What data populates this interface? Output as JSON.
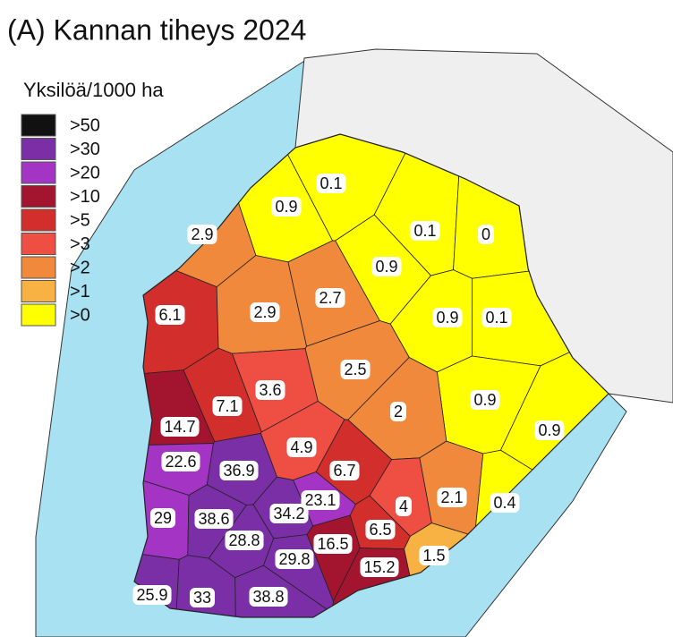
{
  "title": "(A) Kannan tiheys 2024",
  "legend": {
    "title": "Yksilöä/1000 ha",
    "items": [
      {
        "label": ">50",
        "color": "#111111"
      },
      {
        "label": ">30",
        "color": "#7a2fa6"
      },
      {
        "label": ">20",
        "color": "#a334c4"
      },
      {
        "label": ">10",
        "color": "#a3152e"
      },
      {
        "label": ">5",
        "color": "#d22e2c"
      },
      {
        "label": ">3",
        "color": "#ef4e43"
      },
      {
        "label": ">2",
        "color": "#f0893c"
      },
      {
        "label": ">1",
        "color": "#f8b244"
      },
      {
        "label": ">0",
        "color": "#ffff00"
      }
    ]
  },
  "regions": [
    {
      "value": 0.1
    },
    {
      "value": 0.9
    },
    {
      "value": 2.9
    },
    {
      "value": 0.1
    },
    {
      "value": 0
    },
    {
      "value": 0.9
    },
    {
      "value": 6.1
    },
    {
      "value": 2.9
    },
    {
      "value": 2.7
    },
    {
      "value": 0.9
    },
    {
      "value": 0.1
    },
    {
      "value": 2.5
    },
    {
      "value": 3.6
    },
    {
      "value": 7.1
    },
    {
      "value": 0.9
    },
    {
      "value": 2
    },
    {
      "value": 14.7
    },
    {
      "value": 0.9
    },
    {
      "value": 4.9
    },
    {
      "value": 22.6
    },
    {
      "value": 36.9
    },
    {
      "value": 6.7
    },
    {
      "value": 23.1
    },
    {
      "value": 2.1
    },
    {
      "value": 0.4
    },
    {
      "value": 4
    },
    {
      "value": 29
    },
    {
      "value": 38.6
    },
    {
      "value": 34.2
    },
    {
      "value": 6.5
    },
    {
      "value": 28.8
    },
    {
      "value": 16.5
    },
    {
      "value": 29.8
    },
    {
      "value": 1.5
    },
    {
      "value": 15.2
    },
    {
      "value": 25.9
    },
    {
      "value": 33
    },
    {
      "value": 38.8
    }
  ]
}
